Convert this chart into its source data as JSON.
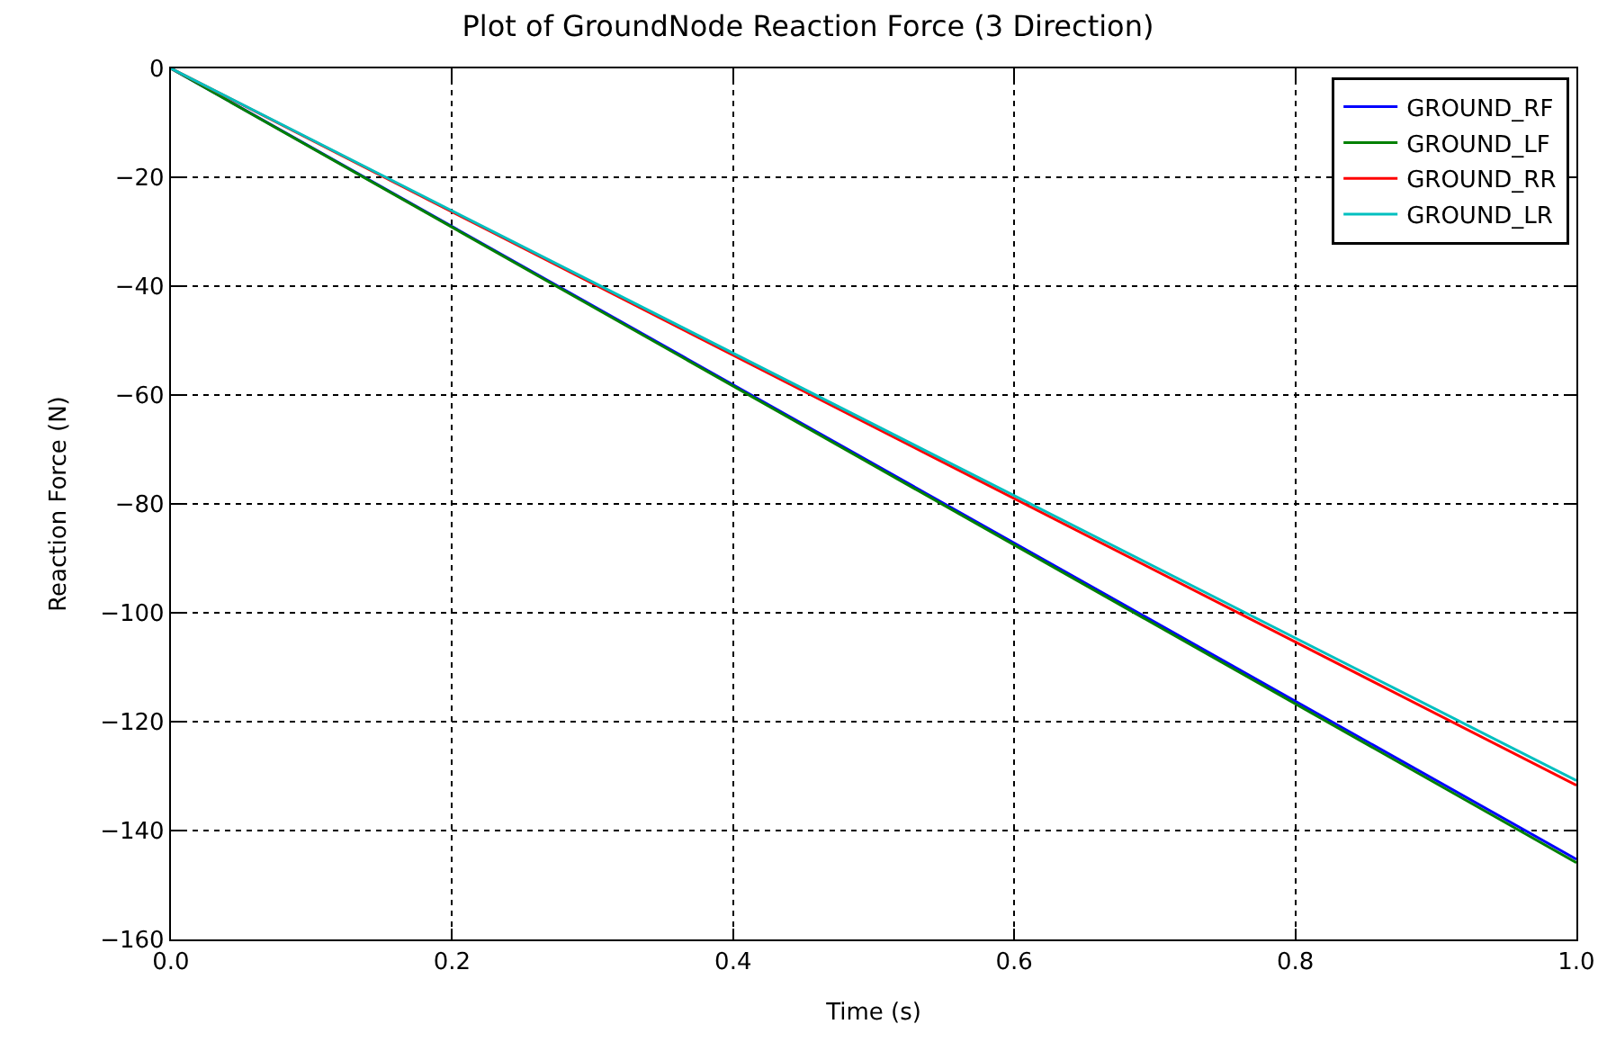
{
  "chart_data": {
    "type": "line",
    "title": "Plot of GroundNode Reaction Force (3 Direction)",
    "xlabel": "Time (s)",
    "ylabel": "Reaction Force (N)",
    "x": [
      0,
      1
    ],
    "series": [
      {
        "name": "GROUND_RF",
        "color": "#0000ff",
        "values": [
          0,
          -145.3
        ]
      },
      {
        "name": "GROUND_LF",
        "color": "#008000",
        "values": [
          0,
          -145.9
        ]
      },
      {
        "name": "GROUND_RR",
        "color": "#ff0000",
        "values": [
          0,
          -131.7
        ]
      },
      {
        "name": "GROUND_LR",
        "color": "#00bfbf",
        "values": [
          0,
          -130.8
        ]
      }
    ],
    "xlim": [
      0,
      1
    ],
    "xticks": [
      {
        "value": 0,
        "label": "0.0"
      },
      {
        "value": 0.2,
        "label": "0.2"
      },
      {
        "value": 0.4,
        "label": "0.4"
      },
      {
        "value": 0.6,
        "label": "0.6"
      },
      {
        "value": 0.8,
        "label": "0.8"
      },
      {
        "value": 1,
        "label": "1.0"
      }
    ],
    "ylim": [
      -160,
      0
    ],
    "yticks": [
      -160,
      -140,
      -120,
      -100,
      -80,
      -60,
      -40,
      -20,
      0
    ],
    "grid": true,
    "legend": "top right",
    "line_style": "solid"
  }
}
